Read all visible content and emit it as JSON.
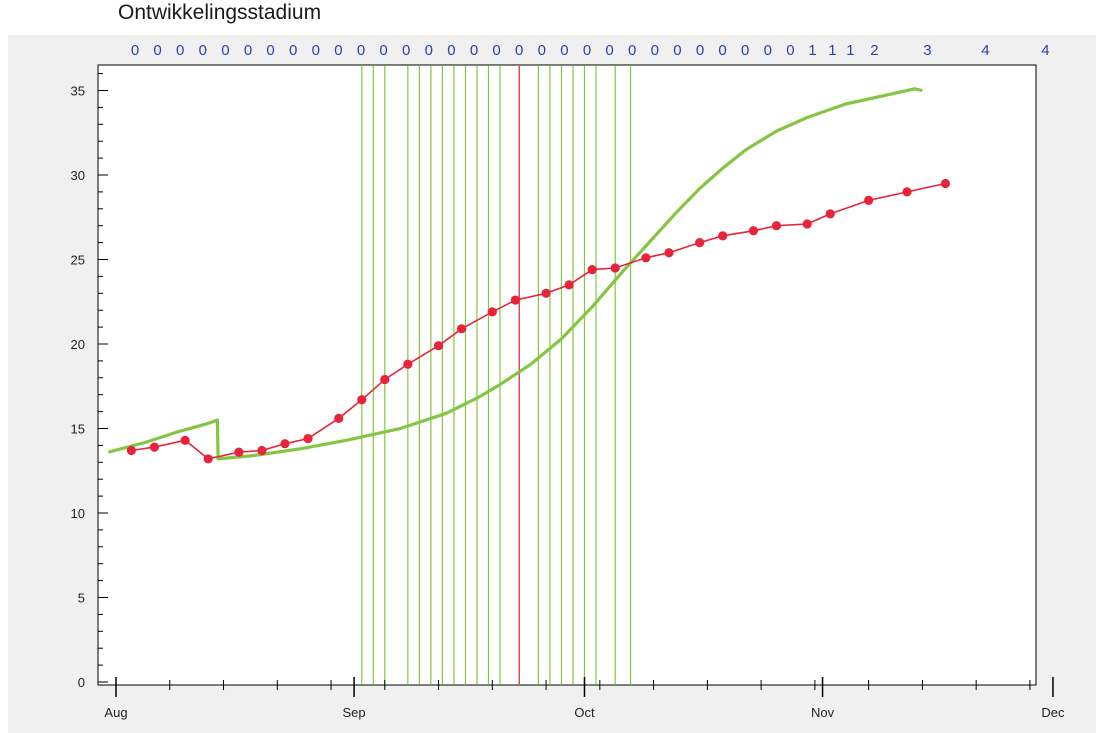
{
  "chart_data": {
    "type": "line",
    "title": "Ontwikkelingsstadium",
    "top_labels": [
      "0",
      "0",
      "0",
      "0",
      "0",
      "0",
      "0",
      "0",
      "0",
      "0",
      "0",
      "0",
      "0",
      "0",
      "0",
      "0",
      "0",
      "0",
      "0",
      "0",
      "0",
      "0",
      "0",
      "0",
      "0",
      "0",
      "0",
      "0",
      "0",
      "0",
      "1",
      "1",
      "1",
      "2",
      "3",
      "4",
      "4"
    ],
    "x_ticks": [
      "Aug",
      "Sep",
      "Oct",
      "Nov",
      "Dec"
    ],
    "xlim": [
      0,
      122
    ],
    "ylim": [
      0,
      37
    ],
    "y_ticks": [
      0,
      5,
      10,
      15,
      20,
      25,
      30,
      35
    ],
    "grid": false,
    "series": [
      {
        "color": "#86c543",
        "values": [
          [
            -1,
            13.6
          ],
          [
            4,
            14.2
          ],
          [
            8,
            14.8
          ],
          [
            12,
            15.3
          ],
          [
            13.2,
            15.5
          ],
          [
            13.3,
            13.2
          ],
          [
            18,
            13.4
          ],
          [
            24,
            13.8
          ],
          [
            30,
            14.3
          ],
          [
            37,
            15.0
          ],
          [
            43,
            15.9
          ],
          [
            47,
            16.8
          ],
          [
            50,
            17.6
          ],
          [
            54,
            18.8
          ],
          [
            58,
            20.3
          ],
          [
            62,
            22.2
          ],
          [
            66,
            24.3
          ],
          [
            70,
            26.3
          ],
          [
            73,
            27.8
          ],
          [
            76,
            29.2
          ],
          [
            79,
            30.4
          ],
          [
            82,
            31.5
          ],
          [
            86,
            32.6
          ],
          [
            90,
            33.4
          ],
          [
            95,
            34.2
          ],
          [
            98,
            34.5
          ],
          [
            101,
            34.8
          ],
          [
            104,
            35.1
          ],
          [
            105,
            35.0
          ]
        ]
      },
      {
        "color": "#e8243a",
        "marker": true,
        "values": [
          [
            2,
            13.7
          ],
          [
            5,
            13.9
          ],
          [
            9,
            14.3
          ],
          [
            12,
            13.2
          ],
          [
            16,
            13.6
          ],
          [
            19,
            13.7
          ],
          [
            22,
            14.1
          ],
          [
            25,
            14.4
          ],
          [
            29,
            15.6
          ],
          [
            32,
            16.7
          ],
          [
            35,
            17.9
          ],
          [
            38,
            18.8
          ],
          [
            42,
            19.9
          ],
          [
            45,
            20.9
          ],
          [
            49,
            21.9
          ],
          [
            52,
            22.6
          ],
          [
            56,
            23.0
          ],
          [
            59,
            23.5
          ],
          [
            62,
            24.4
          ],
          [
            65,
            24.5
          ],
          [
            69,
            25.1
          ],
          [
            72,
            25.4
          ],
          [
            76,
            26.0
          ],
          [
            79,
            26.4
          ],
          [
            83,
            26.7
          ],
          [
            86,
            27.0
          ],
          [
            90,
            27.1
          ],
          [
            93,
            27.7
          ],
          [
            98,
            28.5
          ],
          [
            103,
            29.0
          ],
          [
            108,
            29.5
          ]
        ]
      }
    ],
    "vertical_markers": [
      {
        "color": "#86c543",
        "values": [
          32,
          33.5,
          35,
          38,
          39.5,
          41,
          42.5,
          44,
          45.5,
          47,
          48.5,
          50,
          55,
          56.5,
          58,
          59.5,
          61,
          62.5,
          65,
          67
        ]
      },
      {
        "color": "#c9242e",
        "values": [
          52.5
        ]
      }
    ]
  }
}
